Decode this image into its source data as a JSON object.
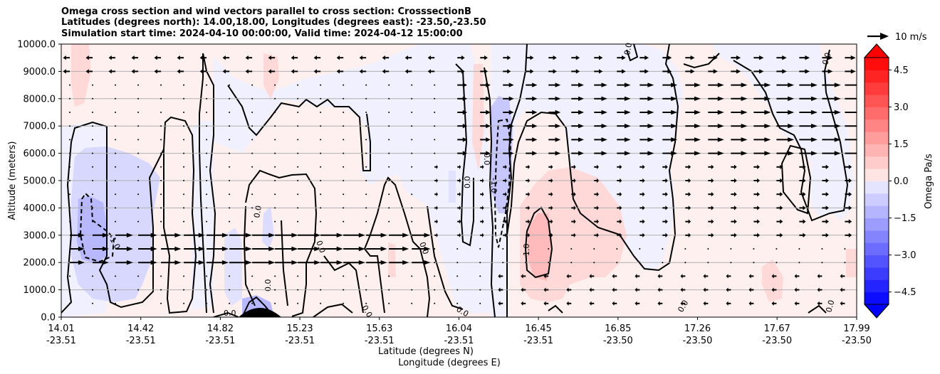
{
  "title_lines": [
    "Omega cross section and wind vectors parallel to cross section: CrosssectionB",
    "Latitudes (degrees north): 14.00,18.00, Longitudes (degrees east): -23.50,-23.50",
    "Simulation start time: 2024-04-10 00:00:00, Valid time: 2024-04-12 15:00:00"
  ],
  "chart_data": {
    "type": "contourf with wind vectors",
    "ylabel": "Altitude (meters)",
    "xlabel_lat": "Latitude (degrees N)",
    "xlabel_lon": "Longitude (degrees E)",
    "ylim": [
      0,
      10000
    ],
    "y_ticks": [
      "0.0",
      "1000.0",
      "2000.0",
      "3000.0",
      "4000.0",
      "5000.0",
      "6000.0",
      "7000.0",
      "8000.0",
      "9000.0",
      "10000.0"
    ],
    "y_tick_values": [
      0,
      1000,
      2000,
      3000,
      4000,
      5000,
      6000,
      7000,
      8000,
      9000,
      10000
    ],
    "grid": "horizontal",
    "x_ticks": [
      {
        "lat": "14.01",
        "lon": "-23.51"
      },
      {
        "lat": "14.42",
        "lon": "-23.51"
      },
      {
        "lat": "14.82",
        "lon": "-23.51"
      },
      {
        "lat": "15.23",
        "lon": "-23.51"
      },
      {
        "lat": "15.63",
        "lon": "-23.51"
      },
      {
        "lat": "16.04",
        "lon": "-23.51"
      },
      {
        "lat": "16.45",
        "lon": "-23.51"
      },
      {
        "lat": "16.85",
        "lon": "-23.50"
      },
      {
        "lat": "17.26",
        "lon": "-23.50"
      },
      {
        "lat": "17.67",
        "lon": "-23.50"
      },
      {
        "lat": "17.99",
        "lon": "-23.50"
      }
    ],
    "contour_labels": [
      "-1.0",
      "0.0",
      "0.0",
      "0.0",
      "0.0",
      "0.0",
      "0.0",
      "0.0",
      "0.0",
      "-1.0",
      "1.0",
      "0.0",
      "0.0",
      "0.0",
      "0.0",
      "0.0"
    ],
    "colorbar": {
      "label": "Omega Pa/s",
      "ticks": [
        "4.5",
        "3.0",
        "1.5",
        "0.0",
        "−1.5",
        "−3.0",
        "−4.5"
      ],
      "range": [
        -5,
        5
      ],
      "extend": "both",
      "colors": {
        "max": "#ff0000",
        "mid_pos": "#ff9898",
        "zero_pos": "#fff0f0",
        "zero_neg": "#f0f0ff",
        "mid_neg": "#9898ff",
        "min": "#0000ff"
      }
    },
    "quiver_key": {
      "label": "10 m/s",
      "speed_ms": 10
    },
    "regions": [
      {
        "name": "positive-weak",
        "color": "#ffefef"
      },
      {
        "name": "negative-weak",
        "color": "#efefff"
      },
      {
        "name": "negative-1",
        "color": "#d7d7ff"
      },
      {
        "name": "positive-1",
        "color": "#ffd7d7"
      },
      {
        "name": "positive-2",
        "color": "#ffbbbb"
      }
    ]
  }
}
